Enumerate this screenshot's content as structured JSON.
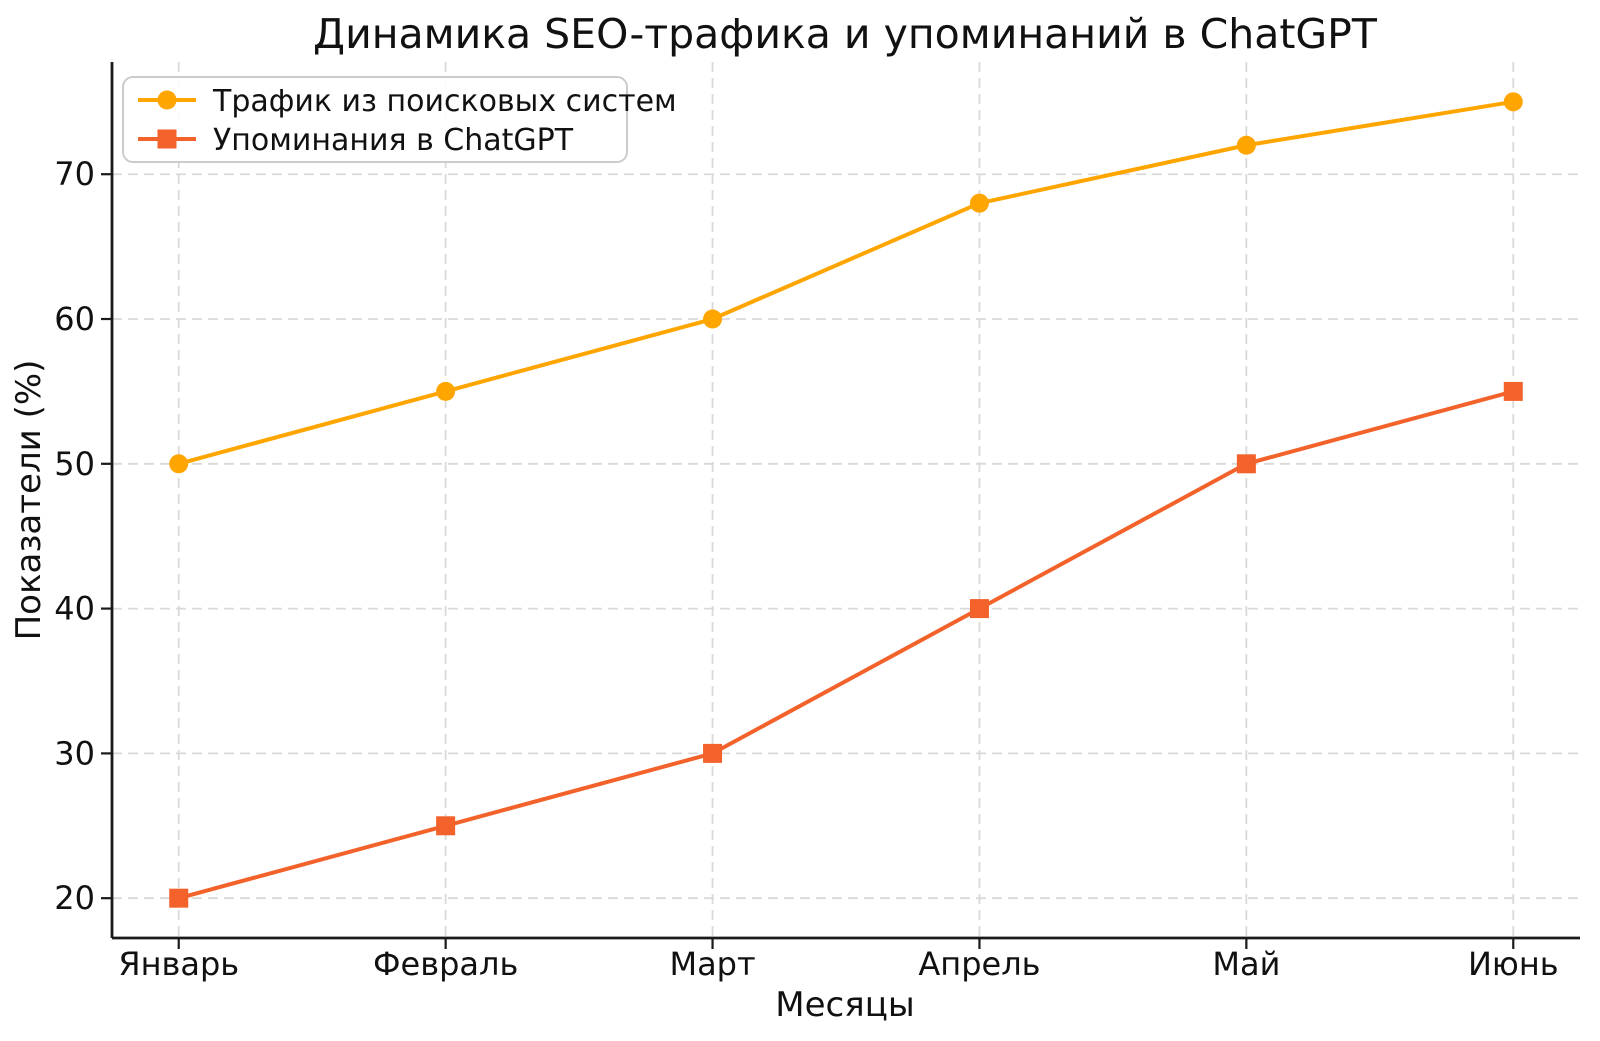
{
  "figure": {
    "background": "#FFFFFF"
  },
  "chart_data": {
    "type": "line",
    "title": "Динамика SEO-трафика и упоминаний в ChatGPT",
    "xlabel": "Месяцы",
    "ylabel": "Показатели (%)",
    "categories": [
      "Январь",
      "Февраль",
      "Март",
      "Апрель",
      "Май",
      "Июнь"
    ],
    "series": [
      {
        "name": "Трафик из поисковых систем",
        "color": "#FFA500",
        "marker": "circle",
        "values": [
          50,
          55,
          60,
          68,
          72,
          75
        ]
      },
      {
        "name": "Упоминания в ChatGPT",
        "color": "#F2622A",
        "marker": "square",
        "values": [
          20,
          25,
          30,
          40,
          50,
          55
        ]
      }
    ],
    "yticks": [
      20,
      30,
      40,
      50,
      60,
      70
    ],
    "ylim": [
      17.25,
      77.75
    ],
    "xlim": [
      -0.25,
      5.25
    ],
    "grid": "dashed",
    "legend_position": "upper-left",
    "colors": {
      "grid": "#D9D9D9",
      "spine": "#1A1A1A",
      "text": "#111111",
      "legend_border": "#CCCCCC",
      "legend_background": "#FFFFFF"
    }
  }
}
